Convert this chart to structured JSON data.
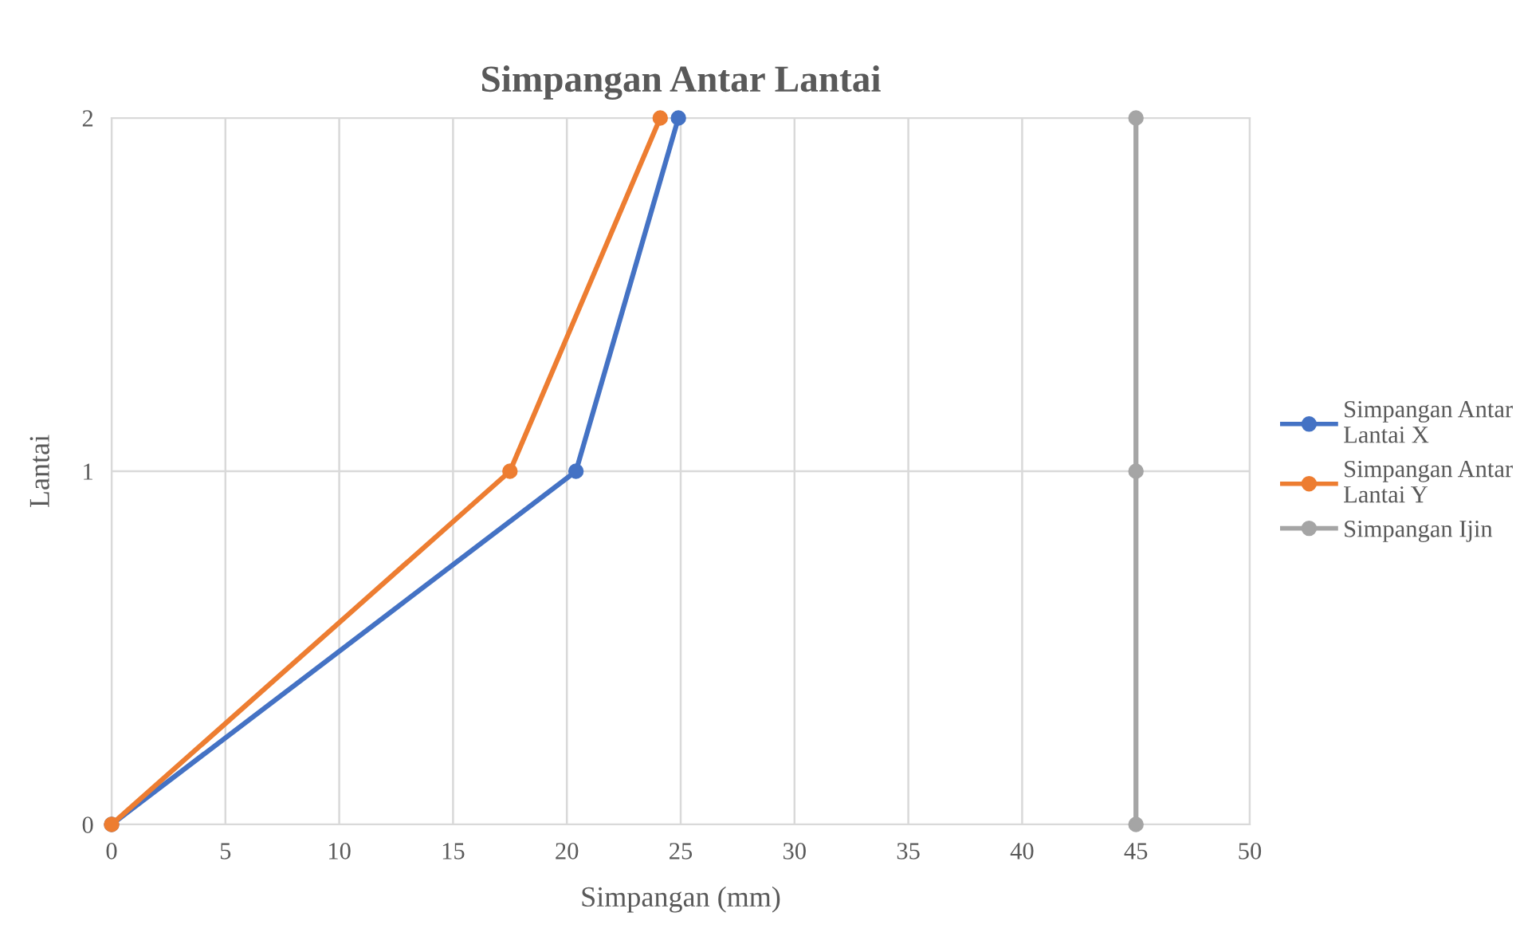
{
  "chart_data": {
    "type": "line",
    "title": "Simpangan Antar Lantai",
    "xlabel": "Simpangan (mm)",
    "ylabel": "Lantai",
    "series": [
      {
        "name": "Simpangan Antar Lantai X",
        "color": "#4472c4",
        "x": [
          0,
          20.4,
          24.9
        ],
        "values": [
          0,
          1,
          2
        ]
      },
      {
        "name": "Simpangan Antar Lantai Y",
        "color": "#ed7d31",
        "x": [
          0,
          17.5,
          24.1
        ],
        "values": [
          0,
          1,
          2
        ]
      },
      {
        "name": "Simpangan Ijin",
        "color": "#a5a5a5",
        "x": [
          45,
          45,
          45
        ],
        "values": [
          0,
          1,
          2
        ]
      }
    ],
    "xlim": [
      0,
      50
    ],
    "xticks": [
      0,
      5,
      10,
      15,
      20,
      25,
      30,
      35,
      40,
      45,
      50
    ],
    "ylim": [
      0,
      2
    ],
    "yticks": [
      0,
      1,
      2
    ],
    "grid": true,
    "legend": "right",
    "marker": "circle",
    "line_style": "solid"
  }
}
